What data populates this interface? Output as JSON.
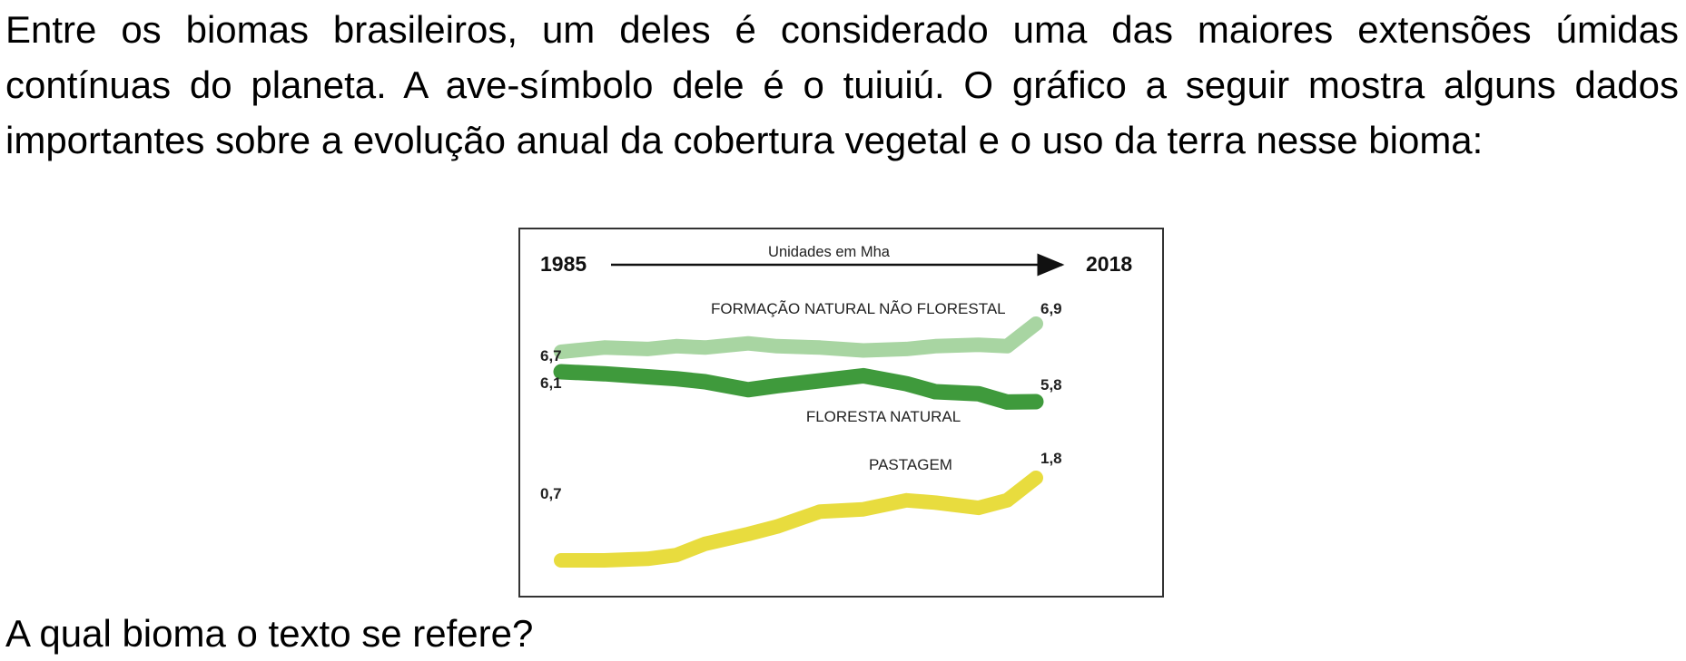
{
  "intro_text": "Entre os biomas brasileiros, um deles é considerado uma das maiores extensões úmidas contínuas do planeta. A ave-símbolo dele é o tuiuiú. O gráfico a seguir mostra alguns dados importantes sobre a evolução anual da cobertura vegetal e o uso da terra nesse bioma:",
  "question": "A qual bioma o texto se refere?",
  "chart_data": {
    "type": "line",
    "title": "",
    "subtitle": "Unidades em Mha",
    "x_start_label": "1985",
    "x_end_label": "2018",
    "x": [
      1985,
      1988,
      1991,
      1993,
      1995,
      1998,
      2000,
      2003,
      2006,
      2009,
      2011,
      2014,
      2016,
      2018
    ],
    "xlim": [
      1985,
      2018
    ],
    "ylim": [
      0,
      7.5
    ],
    "grid": false,
    "legend": "none",
    "series": [
      {
        "name": "FORMAÇÃO NATURAL NÃO FLORESTAL",
        "color": "#a8d5a2",
        "start_label": "6,7",
        "end_label": "6,9",
        "values": [
          6.7,
          6.73,
          6.72,
          6.74,
          6.73,
          6.76,
          6.74,
          6.73,
          6.71,
          6.72,
          6.74,
          6.75,
          6.74,
          6.9
        ]
      },
      {
        "name": "FLORESTA NATURAL",
        "color": "#3f9a3c",
        "start_label": "6,1",
        "end_label": "5,8",
        "values": [
          6.1,
          6.08,
          6.05,
          6.03,
          6.0,
          5.92,
          5.96,
          6.01,
          6.06,
          5.98,
          5.9,
          5.88,
          5.78,
          5.8
        ]
      },
      {
        "name": "PASTAGEM",
        "color": "#e8dc3e",
        "start_label": "0,7",
        "end_label": "1,8",
        "values": [
          0.7,
          0.7,
          0.72,
          0.77,
          0.92,
          1.05,
          1.15,
          1.35,
          1.38,
          1.5,
          1.47,
          1.4,
          1.5,
          1.8
        ]
      }
    ]
  }
}
